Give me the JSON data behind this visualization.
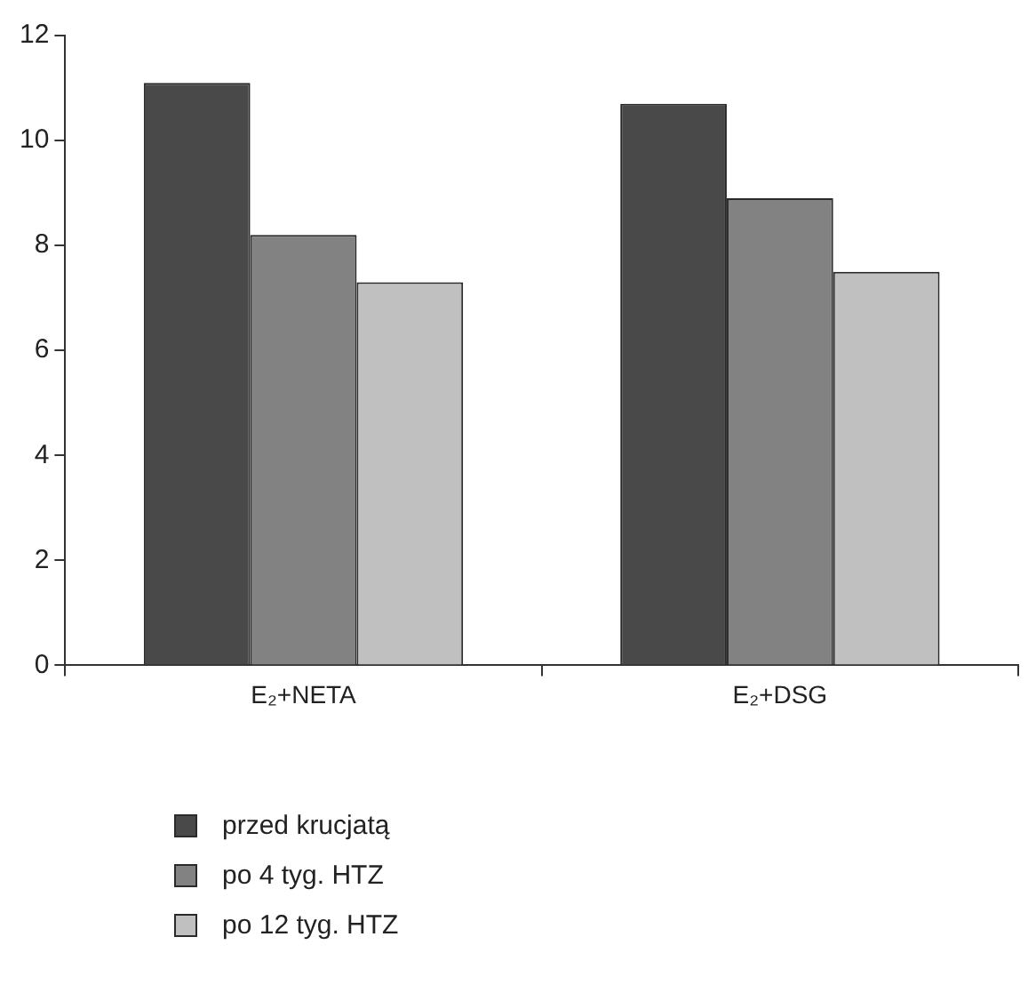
{
  "chart_data": {
    "type": "bar",
    "categories": [
      "E₂+NETA",
      "E₂+DSG"
    ],
    "series": [
      {
        "name": "przed krucjatą",
        "color": "#494949",
        "values": [
          11.1,
          10.7
        ]
      },
      {
        "name": "po 4 tyg. HTZ",
        "color": "#828282",
        "values": [
          8.2,
          8.9
        ]
      },
      {
        "name": "po 12 tyg. HTZ",
        "color": "#c0c0c0",
        "values": [
          7.3,
          7.5
        ]
      }
    ],
    "ylim": [
      0,
      12
    ],
    "yticks": [
      0,
      2,
      4,
      6,
      8,
      10,
      12
    ],
    "legend": "bottom"
  }
}
